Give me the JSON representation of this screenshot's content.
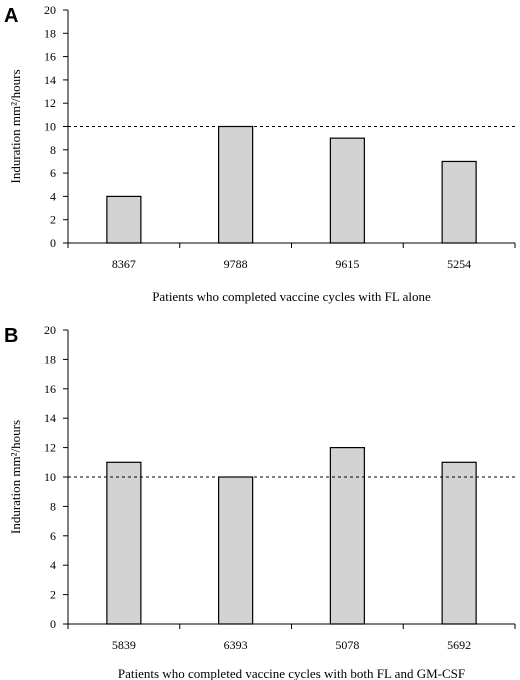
{
  "chart_data": [
    {
      "type": "bar",
      "panel_label": "A",
      "categories": [
        "8367",
        "9788",
        "9615",
        "5254"
      ],
      "values": [
        4,
        10,
        9,
        7
      ],
      "ylim": [
        0,
        20
      ],
      "yticks": [
        0,
        2,
        4,
        6,
        8,
        10,
        12,
        14,
        16,
        18,
        20
      ],
      "ylabel": "Induration mm²/hours",
      "xlabel": "Patients who completed vaccine cycles with FL alone",
      "reference_line": 10,
      "bar_color": "#d3d3d3",
      "grid": false
    },
    {
      "type": "bar",
      "panel_label": "B",
      "categories": [
        "5839",
        "6393",
        "5078",
        "5692"
      ],
      "values": [
        11,
        10,
        12,
        11
      ],
      "ylim": [
        0,
        20
      ],
      "yticks": [
        0,
        2,
        4,
        6,
        8,
        10,
        12,
        14,
        16,
        18,
        20
      ],
      "ylabel": "Induration mm²/hours",
      "xlabel": "Patients who completed vaccine cycles with both FL and GM-CSF",
      "reference_line": 10,
      "bar_color": "#d3d3d3",
      "grid": false
    }
  ]
}
